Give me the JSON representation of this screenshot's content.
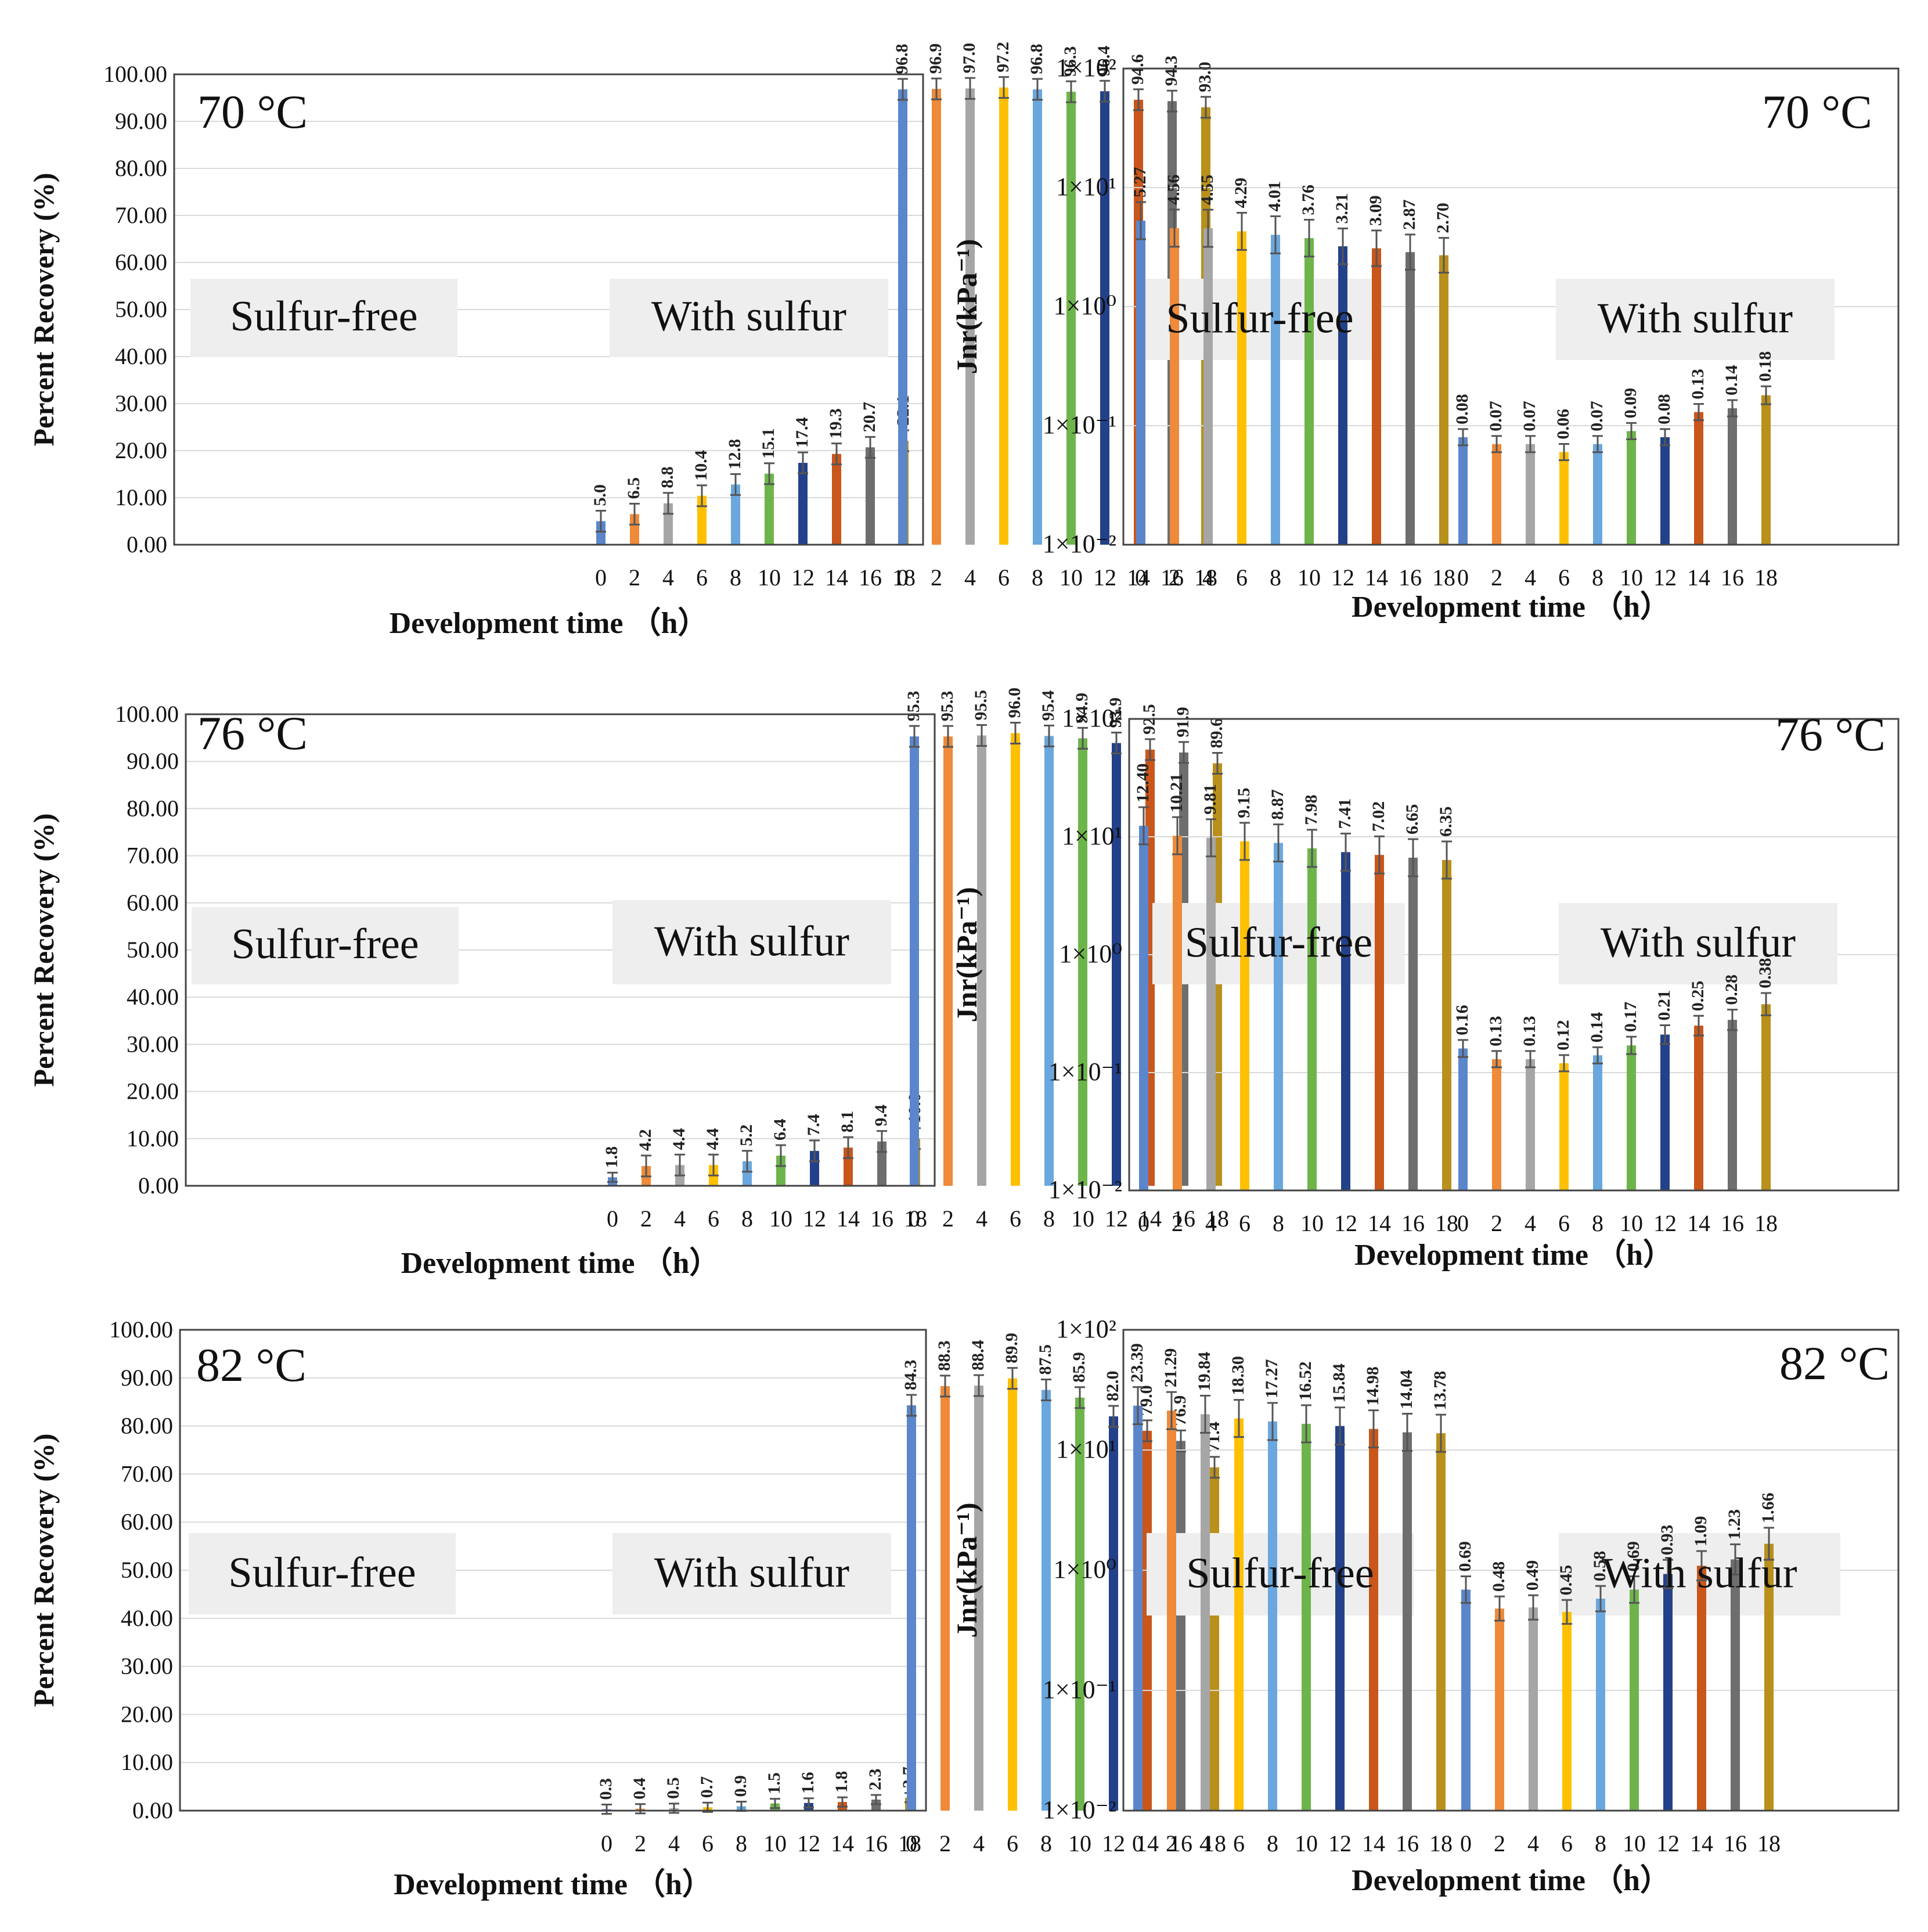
{
  "x_ticks": [
    "0",
    "2",
    "4",
    "6",
    "8",
    "10",
    "12",
    "14",
    "16",
    "18"
  ],
  "series_colors": [
    "#5B86CC",
    "#EE8A3A",
    "#A6A6A6",
    "#FFC000",
    "#6AA7DE",
    "#6DB54B",
    "#23418A",
    "#C9561B",
    "#6E6E6E",
    "#B8901B"
  ],
  "label_box_color": "#EEEEEE",
  "chart_data": [
    {
      "type": "bar",
      "temp": "70 °C",
      "ylabel": "Percent Recovery (%)",
      "xlabel": "Development time （h）",
      "yticks": [
        "0.00",
        "10.00",
        "20.00",
        "30.00",
        "40.00",
        "50.00",
        "60.00",
        "70.00",
        "80.00",
        "90.00",
        "100.00"
      ],
      "ylim": [
        0,
        100
      ],
      "scale": "linear",
      "groups": [
        {
          "label": "Sulfur-free",
          "values": [
            5.0,
            6.5,
            8.8,
            10.4,
            12.8,
            15.1,
            17.4,
            19.3,
            20.7,
            22.1
          ],
          "labels": [
            "5.0",
            "6.5",
            "8.8",
            "10.4",
            "12.8",
            "15.1",
            "17.4",
            "19.3",
            "20.7",
            "22.1"
          ]
        },
        {
          "label": "With sulfur",
          "values": [
            96.8,
            96.9,
            97.0,
            97.2,
            96.8,
            96.3,
            96.4,
            94.6,
            94.3,
            93.0
          ],
          "labels": [
            "96.8",
            "96.9",
            "97.0",
            "97.2",
            "96.8",
            "96.3",
            "96.4",
            "94.6",
            "94.3",
            "93.0"
          ]
        }
      ]
    },
    {
      "type": "bar",
      "temp": "70 °C",
      "ylabel": "Jnr(kPa⁻¹)",
      "xlabel": "Development time （h）",
      "yticks": [
        "1×10⁻²",
        "1×10⁻¹",
        "1×10⁰",
        "1×10¹",
        "1×10²"
      ],
      "ylim": [
        0.01,
        100
      ],
      "scale": "log",
      "groups": [
        {
          "label": "Sulfur-free",
          "values": [
            5.27,
            4.56,
            4.55,
            4.29,
            4.01,
            3.76,
            3.21,
            3.09,
            2.87,
            2.7
          ],
          "labels": [
            "5.27",
            "4.56",
            "4.55",
            "4.29",
            "4.01",
            "3.76",
            "3.21",
            "3.09",
            "2.87",
            "2.70"
          ]
        },
        {
          "label": "With sulfur",
          "values": [
            0.08,
            0.07,
            0.07,
            0.06,
            0.07,
            0.09,
            0.08,
            0.13,
            0.14,
            0.18
          ],
          "labels": [
            "0.08",
            "0.07",
            "0.07",
            "0.06",
            "0.07",
            "0.09",
            "0.08",
            "0.13",
            "0.14",
            "0.18"
          ]
        }
      ]
    },
    {
      "type": "bar",
      "temp": "76 °C",
      "ylabel": "Percent Recovery (%)",
      "xlabel": "Development time （h）",
      "yticks": [
        "0.00",
        "10.00",
        "20.00",
        "30.00",
        "40.00",
        "50.00",
        "60.00",
        "70.00",
        "80.00",
        "90.00",
        "100.00"
      ],
      "ylim": [
        0,
        100
      ],
      "scale": "linear",
      "groups": [
        {
          "label": "Sulfur-free",
          "values": [
            1.8,
            4.2,
            4.4,
            4.4,
            5.2,
            6.4,
            7.4,
            8.1,
            9.4,
            10.0
          ],
          "labels": [
            "1.8",
            "4.2",
            "4.4",
            "4.4",
            "5.2",
            "6.4",
            "7.4",
            "8.1",
            "9.4",
            "10.0"
          ]
        },
        {
          "label": "With sulfur",
          "values": [
            95.3,
            95.3,
            95.5,
            96.0,
            95.4,
            94.9,
            93.9,
            92.5,
            91.9,
            89.6
          ],
          "labels": [
            "95.3",
            "95.3",
            "95.5",
            "96.0",
            "95.4",
            "94.9",
            "93.9",
            "92.5",
            "91.9",
            "89.6"
          ]
        }
      ]
    },
    {
      "type": "bar",
      "temp": "76 °C",
      "ylabel": "Jnr(kPa⁻¹)",
      "xlabel": "Development time （h）",
      "yticks": [
        "1×10⁻²",
        "1×10⁻¹",
        "1×10⁰",
        "1×10¹",
        "1×10²"
      ],
      "ylim": [
        0.01,
        100
      ],
      "scale": "log",
      "groups": [
        {
          "label": "Sulfur-free",
          "values": [
            12.4,
            10.21,
            9.81,
            9.15,
            8.87,
            7.98,
            7.41,
            7.02,
            6.65,
            6.35
          ],
          "labels": [
            "12.40",
            "10.21",
            "9.81",
            "9.15",
            "8.87",
            "7.98",
            "7.41",
            "7.02",
            "6.65",
            "6.35"
          ]
        },
        {
          "label": "With sulfur",
          "values": [
            0.16,
            0.13,
            0.13,
            0.12,
            0.14,
            0.17,
            0.21,
            0.25,
            0.28,
            0.38
          ],
          "labels": [
            "0.16",
            "0.13",
            "0.13",
            "0.12",
            "0.14",
            "0.17",
            "0.21",
            "0.25",
            "0.28",
            "0.38"
          ]
        }
      ]
    },
    {
      "type": "bar",
      "temp": "82 °C",
      "ylabel": "Percent Recovery (%)",
      "xlabel": "Development time （h）",
      "yticks": [
        "0.00",
        "10.00",
        "20.00",
        "30.00",
        "40.00",
        "50.00",
        "60.00",
        "70.00",
        "80.00",
        "90.00",
        "100.00"
      ],
      "ylim": [
        0,
        100
      ],
      "scale": "linear",
      "groups": [
        {
          "label": "Sulfur-free",
          "values": [
            0.3,
            0.4,
            0.5,
            0.7,
            0.9,
            1.5,
            1.6,
            1.8,
            2.3,
            2.7
          ],
          "labels": [
            "0.3",
            "0.4",
            "0.5",
            "0.7",
            "0.9",
            "1.5",
            "1.6",
            "1.8",
            "2.3",
            "2.7"
          ]
        },
        {
          "label": "With sulfur",
          "values": [
            84.3,
            88.3,
            88.4,
            89.9,
            87.5,
            85.9,
            82.0,
            79.0,
            76.9,
            71.4
          ],
          "labels": [
            "84.3",
            "88.3",
            "88.4",
            "89.9",
            "87.5",
            "85.9",
            "82.0",
            "79.0",
            "76.9",
            "71.4"
          ]
        }
      ]
    },
    {
      "type": "bar",
      "temp": "82 °C",
      "ylabel": "Jnr(kPa⁻¹)",
      "xlabel": "Development time （h）",
      "yticks": [
        "1×10⁻²",
        "1×10⁻¹",
        "1×10⁰",
        "1×10¹",
        "1×10²"
      ],
      "ylim": [
        0.01,
        100
      ],
      "scale": "log",
      "groups": [
        {
          "label": "Sulfur-free",
          "values": [
            23.39,
            21.29,
            19.84,
            18.3,
            17.27,
            16.52,
            15.84,
            14.98,
            14.04,
            13.78
          ],
          "labels": [
            "23.39",
            "21.29",
            "19.84",
            "18.30",
            "17.27",
            "16.52",
            "15.84",
            "14.98",
            "14.04",
            "13.78"
          ]
        },
        {
          "label": "With sulfur",
          "values": [
            0.69,
            0.48,
            0.49,
            0.45,
            0.58,
            0.69,
            0.93,
            1.09,
            1.23,
            1.66
          ],
          "labels": [
            "0.69",
            "0.48",
            "0.49",
            "0.45",
            "0.58",
            "0.69",
            "0.93",
            "1.09",
            "1.23",
            "1.66"
          ]
        }
      ]
    }
  ]
}
